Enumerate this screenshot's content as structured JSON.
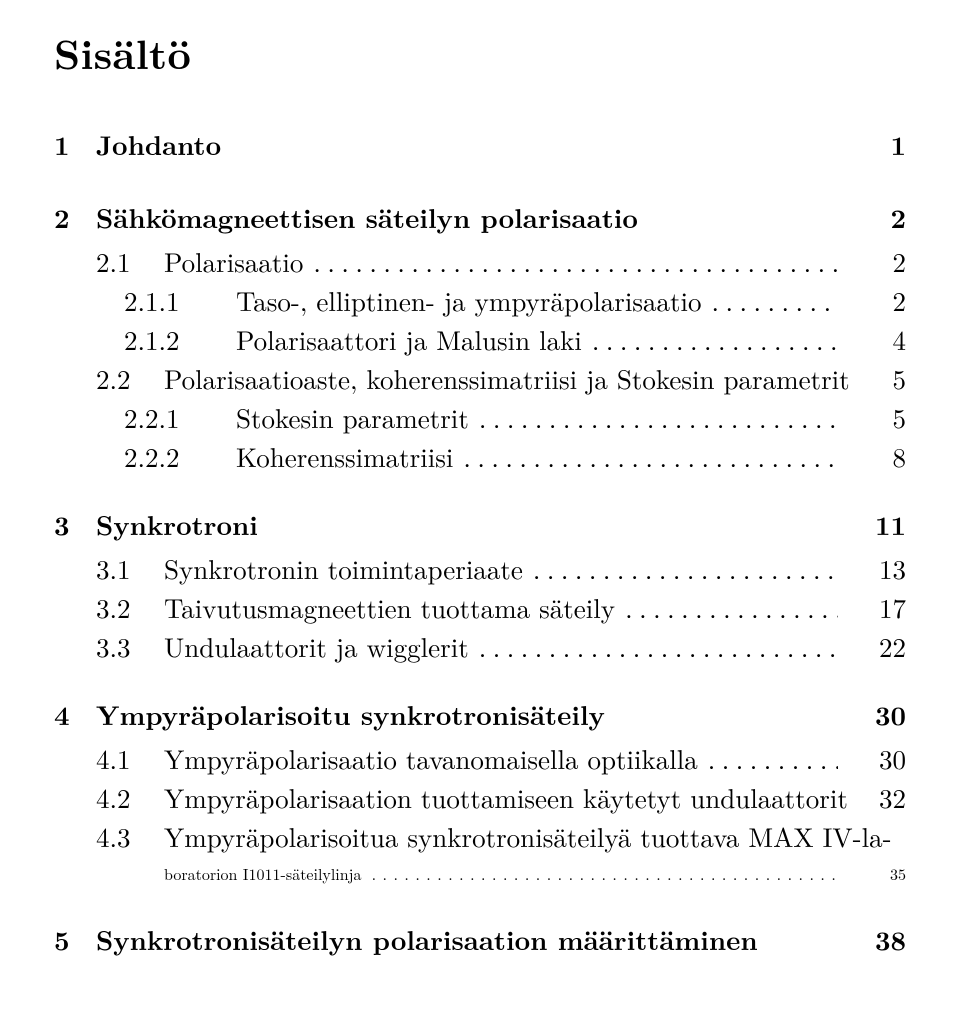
{
  "title": "Sisältö",
  "dots": "....................................................................................................",
  "sections": [
    {
      "num": "1",
      "title": "Johdanto",
      "page": "1",
      "subs": []
    },
    {
      "num": "2",
      "title": "Sähkömagneettisen säteilyn polarisaatio",
      "page": "2",
      "subs": [
        {
          "num": "2.1",
          "title": "Polarisaatio",
          "page": "2",
          "subs": [
            {
              "num": "2.1.1",
              "title": "Taso-, elliptinen- ja ympyräpolarisaatio",
              "page": "2"
            },
            {
              "num": "2.1.2",
              "title": "Polarisaattori ja Malusin laki",
              "page": "4"
            }
          ]
        },
        {
          "num": "2.2",
          "title": "Polarisaatioaste, koherenssimatriisi ja Stokesin parametrit",
          "page": "5",
          "subs": [
            {
              "num": "2.2.1",
              "title": "Stokesin parametrit",
              "page": "5"
            },
            {
              "num": "2.2.2",
              "title": "Koherenssimatriisi",
              "page": "8"
            }
          ]
        }
      ]
    },
    {
      "num": "3",
      "title": "Synkrotroni",
      "page": "11",
      "subs": [
        {
          "num": "3.1",
          "title": "Synkrotronin toimintaperiaate",
          "page": "13",
          "subs": []
        },
        {
          "num": "3.2",
          "title": "Taivutusmagneettien tuottama säteily",
          "page": "17",
          "subs": []
        },
        {
          "num": "3.3",
          "title": "Undulaattorit ja wigglerit",
          "page": "22",
          "subs": []
        }
      ]
    },
    {
      "num": "4",
      "title": "Ympyräpolarisoitu synkrotronisäteily",
      "page": "30",
      "subs": [
        {
          "num": "4.1",
          "title": "Ympyräpolarisaatio tavanomaisella optiikalla",
          "page": "30",
          "subs": []
        },
        {
          "num": "4.2",
          "title": "Ympyräpolarisaation tuottamiseen käytetyt undulaattorit",
          "page": "32",
          "subs": []
        },
        {
          "num": "4.3",
          "title_l1": "Ympyräpolarisoitua synkrotronisäteilyä tuottava MAX IV-la-",
          "title_l2": "boratorion I1011-säteilylinja",
          "page": "35",
          "subs": [],
          "multiline": true
        }
      ]
    },
    {
      "num": "5",
      "title": "Synkrotronisäteilyn polarisaation määrittäminen",
      "page": "38",
      "subs": []
    }
  ]
}
